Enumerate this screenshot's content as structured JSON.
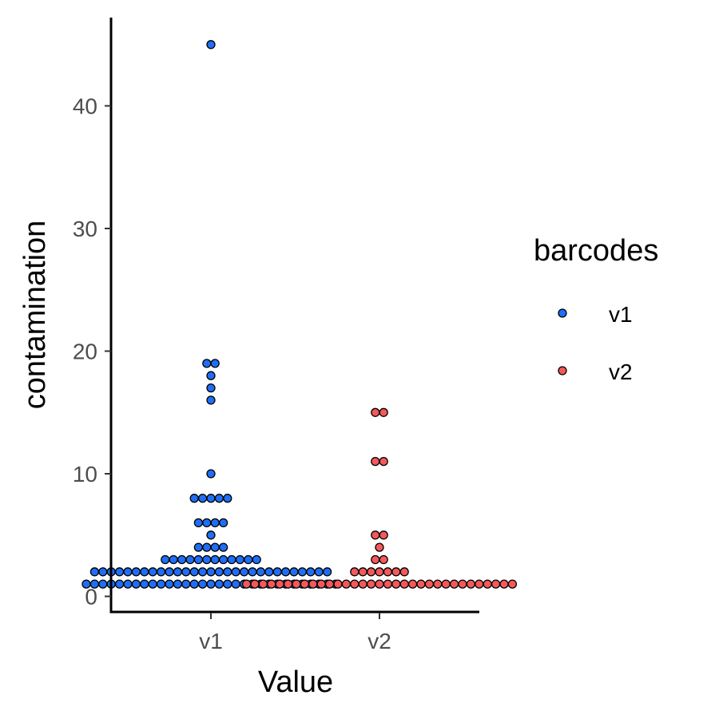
{
  "chart_data": {
    "type": "scatter",
    "style": "beeswarm dot plot",
    "xlabel": "Value",
    "ylabel": "contamination",
    "categories": [
      "v1",
      "v2"
    ],
    "y_ticks": [
      "0",
      "10",
      "20",
      "30",
      "40"
    ],
    "ylim": [
      -1,
      47
    ],
    "grid": false,
    "legend": {
      "title": "barcodes",
      "placement": "right",
      "items": [
        {
          "label": "v1",
          "color": "#1f6ef5"
        },
        {
          "label": "v2",
          "color": "#f5585a"
        }
      ]
    },
    "series": [
      {
        "name": "v1",
        "category": "v1",
        "color": "#1f6ef5",
        "counts": [
          {
            "y": 1,
            "n": 31
          },
          {
            "y": 2,
            "n": 29
          },
          {
            "y": 3,
            "n": 12
          },
          {
            "y": 4,
            "n": 4
          },
          {
            "y": 5,
            "n": 1
          },
          {
            "y": 6,
            "n": 4
          },
          {
            "y": 8,
            "n": 5
          },
          {
            "y": 10,
            "n": 1
          },
          {
            "y": 16,
            "n": 1
          },
          {
            "y": 17,
            "n": 1
          },
          {
            "y": 18,
            "n": 1
          },
          {
            "y": 19,
            "n": 2
          },
          {
            "y": 45,
            "n": 1
          }
        ]
      },
      {
        "name": "v2",
        "category": "v2",
        "color": "#f5585a",
        "counts": [
          {
            "y": 1,
            "n": 33
          },
          {
            "y": 2,
            "n": 7
          },
          {
            "y": 3,
            "n": 2
          },
          {
            "y": 4,
            "n": 1
          },
          {
            "y": 5,
            "n": 2
          },
          {
            "y": 11,
            "n": 2
          },
          {
            "y": 15,
            "n": 2
          }
        ]
      }
    ]
  }
}
